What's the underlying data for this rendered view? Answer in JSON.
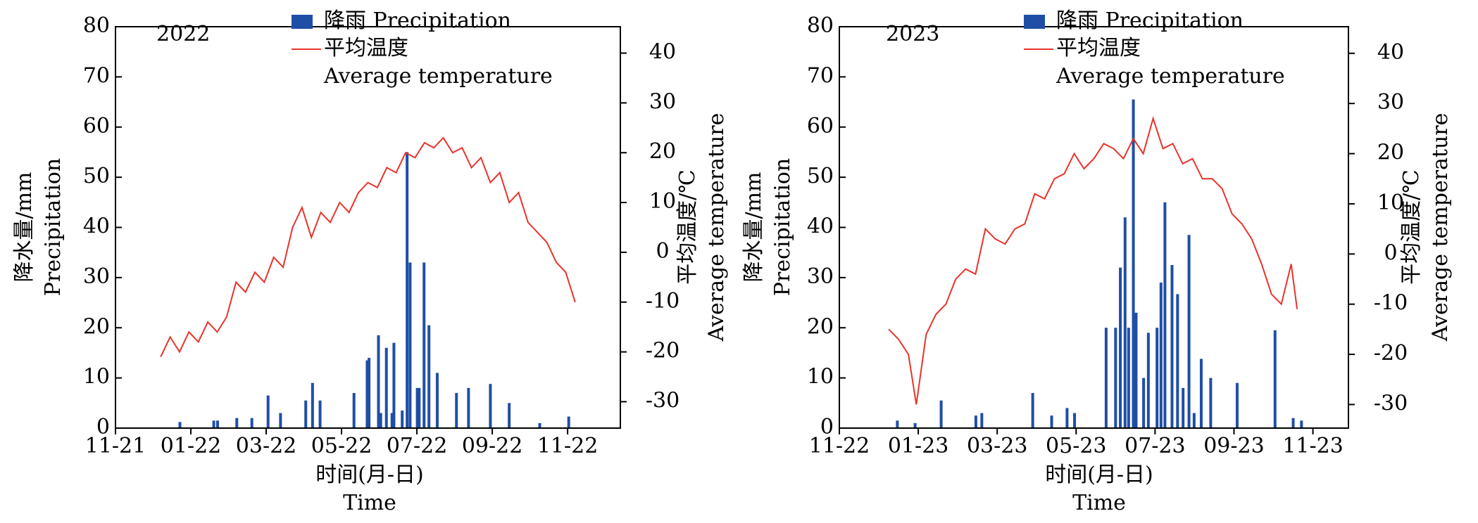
{
  "chart_data": [
    {
      "type": "combo",
      "annotation": "2022",
      "x_label": [
        "时间(月-日)",
        "Time"
      ],
      "y_label": [
        "降水量/mm",
        "Precipitation"
      ],
      "y2_label": [
        "平均温度/℃",
        "Average temperature"
      ],
      "xlim": [
        0,
        13.4
      ],
      "xticks": [
        {
          "value": 0,
          "label": "11-21"
        },
        {
          "value": 2,
          "label": "01-22"
        },
        {
          "value": 4,
          "label": "03-22"
        },
        {
          "value": 6,
          "label": "05-22"
        },
        {
          "value": 8,
          "label": "07-22"
        },
        {
          "value": 10,
          "label": "09-22"
        },
        {
          "value": 12,
          "label": "11-22"
        }
      ],
      "ylim": [
        0,
        80
      ],
      "yticks": [
        0,
        10,
        20,
        30,
        40,
        50,
        60,
        70,
        80
      ],
      "y2lim": [
        -35.3,
        45.3
      ],
      "y2ticks": [
        -30,
        -20,
        -10,
        0,
        10,
        20,
        30,
        40
      ],
      "series": [
        {
          "name": "降雨 Precipitation",
          "type": "bar",
          "color": "#1f4ea6",
          "x": [
            1.71,
            1.71,
            2.71,
            2.61,
            3.22,
            3.62,
            4.05,
            4.38,
            5.05,
            5.23,
            5.43,
            6.33,
            6.68,
            6.73,
            6.98,
            7.04,
            7.19,
            7.34,
            7.39,
            7.61,
            7.74,
            7.82,
            8.01,
            8.06,
            8.19,
            8.32,
            8.54,
            9.05,
            9.37,
            9.95,
            10.45,
            11.26,
            12.03
          ],
          "values": [
            1.2,
            1.2,
            1.5,
            1.5,
            2,
            2,
            6.5,
            3,
            5.5,
            9,
            5.5,
            7,
            13.5,
            14,
            18.5,
            3,
            16,
            3,
            17,
            3.5,
            55,
            33,
            8,
            8,
            33,
            20.5,
            11,
            7,
            8,
            8.8,
            5,
            1,
            2.3
          ]
        },
        {
          "name": "平均温度\nAverage temperature",
          "type": "line",
          "color": "#e8332a",
          "axis": "y2",
          "x": [
            1.2,
            1.45,
            1.7,
            1.95,
            2.2,
            2.45,
            2.7,
            2.95,
            3.2,
            3.45,
            3.7,
            3.95,
            4.2,
            4.45,
            4.7,
            4.95,
            5.2,
            5.45,
            5.7,
            5.95,
            6.2,
            6.45,
            6.7,
            6.95,
            7.2,
            7.45,
            7.7,
            7.95,
            8.2,
            8.45,
            8.7,
            8.95,
            9.2,
            9.45,
            9.7,
            9.95,
            10.2,
            10.45,
            10.7,
            10.95,
            11.2,
            11.45,
            11.7,
            11.95,
            12.2
          ],
          "values": [
            -21,
            -17,
            -20,
            -16,
            -18,
            -14,
            -16,
            -13,
            -6,
            -8,
            -4,
            -6,
            -1,
            -3,
            5,
            9,
            3,
            8,
            6,
            10,
            8,
            12,
            14,
            13,
            17,
            16,
            20,
            19,
            22,
            21,
            23,
            20,
            21,
            17,
            19,
            14,
            16,
            10,
            12,
            6,
            4,
            2,
            -2,
            -4,
            -10
          ]
        }
      ]
    },
    {
      "type": "combo",
      "annotation": "2023",
      "x_label": [
        "时间(月-日)",
        "Time"
      ],
      "y_label": [
        "降水量/mm",
        "Precipitation"
      ],
      "y2_label": [
        "平均温度/℃",
        "Average temperature"
      ],
      "xlim": [
        0,
        12.9
      ],
      "xticks": [
        {
          "value": 0,
          "label": "11-22"
        },
        {
          "value": 2,
          "label": "01-23"
        },
        {
          "value": 4,
          "label": "03-23"
        },
        {
          "value": 6,
          "label": "05-23"
        },
        {
          "value": 8,
          "label": "07-23"
        },
        {
          "value": 10,
          "label": "09-23"
        },
        {
          "value": 12,
          "label": "11-23"
        }
      ],
      "ylim": [
        0,
        80
      ],
      "yticks": [
        0,
        10,
        20,
        30,
        40,
        50,
        60,
        70,
        80
      ],
      "y2lim": [
        -34.7,
        45.3
      ],
      "y2ticks": [
        -30,
        -20,
        -10,
        0,
        10,
        20,
        30,
        40
      ],
      "series": [
        {
          "name": "降雨 Precipitation",
          "type": "bar",
          "color": "#1f4ea6",
          "x": [
            1.47,
            1.92,
            2.58,
            3.46,
            3.61,
            4.9,
            5.38,
            5.77,
            5.96,
            6.76,
            7.0,
            7.12,
            7.24,
            7.33,
            7.45,
            7.52,
            7.71,
            7.83,
            8.05,
            8.15,
            8.25,
            8.43,
            8.57,
            8.71,
            8.86,
            8.99,
            9.17,
            9.41,
            10.08,
            11.04,
            11.5,
            11.71
          ],
          "values": [
            1.5,
            1,
            5.5,
            2.5,
            3,
            7,
            2.5,
            4,
            3,
            20,
            20,
            32,
            42,
            20,
            65.5,
            23,
            10,
            19,
            20,
            29,
            45,
            32.5,
            26.7,
            8,
            38.5,
            3,
            13.8,
            10,
            9,
            19.5,
            2,
            1.5
          ]
        },
        {
          "name": "平均温度\nAverage temperature",
          "type": "line",
          "color": "#e8332a",
          "axis": "y2",
          "x": [
            1.25,
            1.5,
            1.75,
            1.95,
            2.2,
            2.45,
            2.7,
            2.95,
            3.2,
            3.45,
            3.7,
            3.95,
            4.2,
            4.45,
            4.7,
            4.95,
            5.2,
            5.45,
            5.7,
            5.95,
            6.2,
            6.45,
            6.7,
            6.95,
            7.2,
            7.45,
            7.7,
            7.95,
            8.2,
            8.45,
            8.7,
            8.95,
            9.2,
            9.45,
            9.7,
            9.95,
            10.2,
            10.45,
            10.7,
            10.95,
            11.2,
            11.45,
            11.6
          ],
          "values": [
            -15,
            -17,
            -20,
            -30,
            -16,
            -12,
            -10,
            -5,
            -3,
            -4,
            5,
            3,
            2,
            5,
            6,
            12,
            11,
            15,
            16,
            20,
            17,
            19,
            22,
            21,
            19,
            23,
            20,
            27,
            21,
            22,
            18,
            19,
            15,
            15,
            13,
            8,
            6,
            3,
            -2,
            -8,
            -10,
            -2,
            -11
          ]
        }
      ]
    }
  ]
}
